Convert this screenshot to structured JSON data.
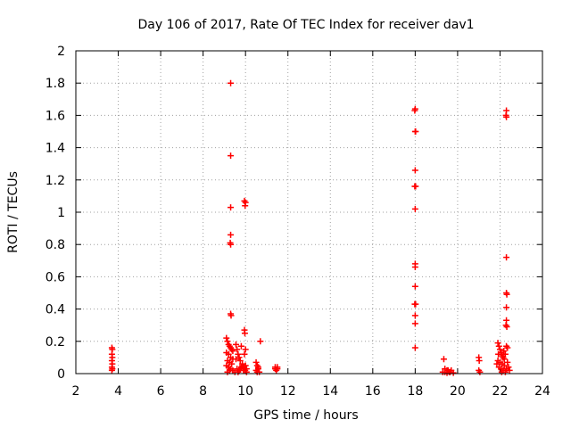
{
  "chart_data": {
    "type": "scatter",
    "title": "Day 106 of 2017, Rate Of TEC Index for receiver dav1",
    "xlabel": "GPS time / hours",
    "ylabel": "ROTI / TECUs",
    "xlim": [
      2,
      24
    ],
    "ylim": [
      0,
      2
    ],
    "xticks": [
      2,
      4,
      6,
      8,
      10,
      12,
      14,
      16,
      18,
      20,
      22,
      24
    ],
    "yticks": [
      0,
      0.2,
      0.4,
      0.6,
      0.8,
      1,
      1.2,
      1.4,
      1.6,
      1.8,
      2
    ],
    "ytick_labels": [
      "0",
      "0.2",
      "0.4",
      "0.6",
      "0.8",
      "1",
      "1.2",
      "1.4",
      "1.6",
      "1.8",
      "2"
    ],
    "grid": true,
    "marker": "plus",
    "marker_color": "#ff0000",
    "series": [
      {
        "points": [
          [
            3.7,
            0.16
          ],
          [
            3.72,
            0.15
          ],
          [
            3.7,
            0.12
          ],
          [
            3.72,
            0.1
          ],
          [
            3.7,
            0.08
          ],
          [
            3.72,
            0.06
          ],
          [
            3.7,
            0.04
          ],
          [
            3.72,
            0.03
          ],
          [
            3.7,
            0.02
          ],
          [
            9.3,
            1.8
          ],
          [
            9.3,
            1.35
          ],
          [
            9.3,
            1.03
          ],
          [
            9.3,
            0.86
          ],
          [
            9.28,
            0.81
          ],
          [
            9.3,
            0.8
          ],
          [
            9.3,
            0.37
          ],
          [
            9.32,
            0.36
          ],
          [
            9.1,
            0.22
          ],
          [
            9.15,
            0.2
          ],
          [
            9.2,
            0.18
          ],
          [
            9.25,
            0.17
          ],
          [
            9.3,
            0.16
          ],
          [
            9.35,
            0.15
          ],
          [
            9.4,
            0.14
          ],
          [
            9.1,
            0.13
          ],
          [
            9.2,
            0.12
          ],
          [
            9.3,
            0.1
          ],
          [
            9.4,
            0.09
          ],
          [
            9.15,
            0.08
          ],
          [
            9.25,
            0.07
          ],
          [
            9.35,
            0.06
          ],
          [
            9.1,
            0.05
          ],
          [
            9.2,
            0.04
          ],
          [
            9.3,
            0.03
          ],
          [
            9.4,
            0.02
          ],
          [
            9.5,
            0.01
          ],
          [
            9.15,
            0.01
          ],
          [
            9.25,
            0.02
          ],
          [
            9.55,
            0.18
          ],
          [
            9.6,
            0.15
          ],
          [
            9.65,
            0.12
          ],
          [
            9.7,
            0.1
          ],
          [
            9.75,
            0.08
          ],
          [
            9.8,
            0.17
          ],
          [
            9.85,
            0.05
          ],
          [
            9.6,
            0.03
          ],
          [
            9.7,
            0.02
          ],
          [
            9.8,
            0.04
          ],
          [
            9.9,
            0.02
          ],
          [
            9.65,
            0.01
          ],
          [
            9.75,
            0.03
          ],
          [
            9.85,
            0.06
          ],
          [
            9.55,
            0.09
          ],
          [
            9.95,
            1.07
          ],
          [
            10.0,
            1.06
          ],
          [
            9.98,
            1.04
          ],
          [
            9.95,
            0.27
          ],
          [
            9.97,
            0.25
          ],
          [
            10.0,
            0.15
          ],
          [
            9.95,
            0.12
          ],
          [
            10.0,
            0.05
          ],
          [
            10.05,
            0.03
          ],
          [
            9.98,
            0.02
          ],
          [
            10.05,
            0.01
          ],
          [
            9.92,
            0.04
          ],
          [
            10.5,
            0.07
          ],
          [
            10.55,
            0.05
          ],
          [
            10.6,
            0.03
          ],
          [
            10.5,
            0.02
          ],
          [
            10.65,
            0.01
          ],
          [
            10.7,
            0.2
          ],
          [
            10.6,
            0.04
          ],
          [
            10.55,
            0.01
          ],
          [
            11.4,
            0.04
          ],
          [
            11.5,
            0.03
          ],
          [
            11.45,
            0.02
          ],
          [
            11.4,
            0.03
          ],
          [
            11.5,
            0.04
          ],
          [
            18.0,
            1.64
          ],
          [
            17.98,
            1.63
          ],
          [
            18.0,
            1.5
          ],
          [
            18.02,
            1.5
          ],
          [
            18.0,
            1.26
          ],
          [
            17.98,
            1.16
          ],
          [
            18.02,
            1.16
          ],
          [
            18.0,
            1.02
          ],
          [
            18.0,
            0.68
          ],
          [
            18.0,
            0.66
          ],
          [
            18.0,
            0.54
          ],
          [
            17.98,
            0.43
          ],
          [
            18.02,
            0.43
          ],
          [
            18.0,
            0.36
          ],
          [
            18.0,
            0.31
          ],
          [
            18.0,
            0.16
          ],
          [
            19.35,
            0.09
          ],
          [
            19.4,
            0.03
          ],
          [
            19.5,
            0.02
          ],
          [
            19.6,
            0.01
          ],
          [
            19.4,
            0.01
          ],
          [
            19.55,
            0.02
          ],
          [
            19.65,
            0.01
          ],
          [
            19.7,
            0.02
          ],
          [
            19.5,
            0.005
          ],
          [
            19.3,
            0.01
          ],
          [
            19.8,
            0.005
          ],
          [
            21.0,
            0.1
          ],
          [
            21.02,
            0.08
          ],
          [
            21.0,
            0.02
          ],
          [
            21.05,
            0.01
          ],
          [
            22.3,
            1.63
          ],
          [
            22.28,
            1.6
          ],
          [
            22.3,
            1.59
          ],
          [
            22.3,
            0.72
          ],
          [
            22.3,
            0.5
          ],
          [
            22.32,
            0.49
          ],
          [
            22.3,
            0.41
          ],
          [
            22.3,
            0.33
          ],
          [
            22.28,
            0.3
          ],
          [
            22.32,
            0.29
          ],
          [
            22.3,
            0.17
          ],
          [
            22.35,
            0.16
          ],
          [
            21.9,
            0.19
          ],
          [
            21.95,
            0.17
          ],
          [
            22.0,
            0.15
          ],
          [
            22.05,
            0.13
          ],
          [
            22.1,
            0.11
          ],
          [
            22.15,
            0.1
          ],
          [
            22.2,
            0.09
          ],
          [
            21.9,
            0.08
          ],
          [
            22.0,
            0.07
          ],
          [
            22.1,
            0.06
          ],
          [
            22.2,
            0.05
          ],
          [
            21.95,
            0.04
          ],
          [
            22.05,
            0.03
          ],
          [
            22.15,
            0.02
          ],
          [
            22.25,
            0.01
          ],
          [
            21.85,
            0.06
          ],
          [
            22.3,
            0.03
          ],
          [
            22.4,
            0.04
          ],
          [
            22.35,
            0.07
          ],
          [
            22.45,
            0.02
          ],
          [
            22.25,
            0.12
          ],
          [
            21.92,
            0.12
          ],
          [
            22.08,
            0.01
          ],
          [
            22.18,
            0.14
          ]
        ]
      }
    ]
  }
}
